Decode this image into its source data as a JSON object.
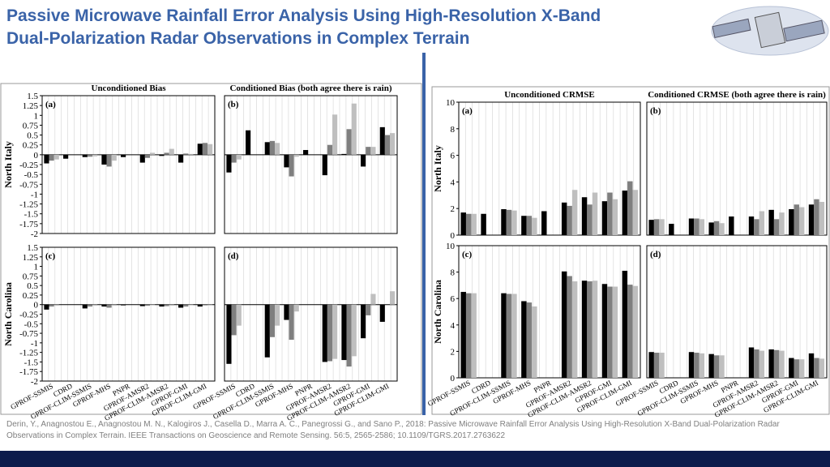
{
  "header": {
    "title": [
      "Passive Microwave Rainfall Error Analysis Using High-Resolution X-Band",
      "Dual-Polarization Radar Observations in Complex Terrain"
    ]
  },
  "citation": "Derin, Y., Anagnostou E., Anagnostou M. N., Kalogiros J., Casella D., Marra A. C., Panegrossi G., and Sano P., 2018: Passive Microwave Rainfall Error Analysis Using High-Resolution X-Band Dual-Polarization Radar Observations in Complex Terrain. IEEE Transactions on Geoscience and Remote Sensing. 56:5, 2565-2586; 10.1109/TGRS.2017.2763622",
  "chart_data": [
    {
      "type": "bar",
      "title": "Unconditioned Bias",
      "panel": "(a)",
      "ylabel": "North Italy",
      "ylim": [
        -2,
        1.5
      ],
      "yticks": [
        1.5,
        1.25,
        1,
        0.75,
        0.5,
        0.25,
        0,
        -0.25,
        -0.5,
        -0.75,
        -1,
        -1.25,
        -1.5,
        -1.75,
        -2
      ],
      "grid": true,
      "series": [
        {
          "color": "#000000",
          "values": [
            -0.22,
            -0.1,
            -0.06,
            -0.25,
            -0.06,
            -0.2,
            -0.03,
            -0.2,
            0.28
          ]
        },
        {
          "color": "#7f7f7f",
          "values": [
            -0.15,
            null,
            -0.05,
            -0.3,
            null,
            -0.08,
            0.05,
            0.03,
            0.3
          ]
        },
        {
          "color": "#bfbfbf",
          "values": [
            -0.12,
            null,
            -0.04,
            -0.15,
            null,
            0.05,
            0.15,
            0.02,
            0.27
          ]
        }
      ]
    },
    {
      "type": "bar",
      "title": "Conditioned Bias (both agree there is rain)",
      "panel": "(b)",
      "ylim": [
        -2,
        1.5
      ],
      "grid": true,
      "series": [
        {
          "color": "#000000",
          "values": [
            -0.45,
            0.62,
            0.32,
            -0.32,
            0.12,
            -0.52,
            0.02,
            -0.3,
            0.7
          ]
        },
        {
          "color": "#7f7f7f",
          "values": [
            -0.2,
            null,
            0.35,
            -0.55,
            null,
            0.25,
            0.65,
            0.2,
            0.5
          ]
        },
        {
          "color": "#bfbfbf",
          "values": [
            -0.12,
            null,
            0.3,
            -0.05,
            null,
            1.02,
            1.3,
            0.2,
            0.55
          ]
        }
      ]
    },
    {
      "type": "bar",
      "panel": "(c)",
      "ylabel": "North Carolina",
      "ylim": [
        -2,
        1.5
      ],
      "yticks": [
        1.5,
        1.25,
        1,
        0.75,
        0.5,
        0.25,
        0,
        -0.25,
        -0.5,
        -0.75,
        -1,
        -1.25,
        -1.5,
        -1.75,
        -2
      ],
      "grid": true,
      "categories": [
        "GPROF-SSMIS",
        "CDRD",
        "GPROF-CLIM-SSMIS",
        "GPROF-MHS",
        "PNPR",
        "GPROF-AMSR2",
        "GPROF-CLIM-AMSR2",
        "GPROF-GMI",
        "GPROF-CLIM-GMI"
      ],
      "series": [
        {
          "color": "#000000",
          "values": [
            -0.13,
            null,
            -0.1,
            -0.05,
            -0.02,
            -0.04,
            -0.05,
            -0.08,
            -0.05
          ]
        },
        {
          "color": "#7f7f7f",
          "values": [
            -0.05,
            null,
            -0.05,
            -0.08,
            null,
            -0.03,
            -0.04,
            -0.05,
            -0.02
          ]
        },
        {
          "color": "#bfbfbf",
          "values": [
            -0.03,
            null,
            -0.03,
            -0.03,
            null,
            -0.02,
            -0.03,
            -0.02,
            -0.01
          ]
        }
      ]
    },
    {
      "type": "bar",
      "panel": "(d)",
      "ylim": [
        -2,
        1.5
      ],
      "grid": true,
      "categories": [
        "GPROF-SSMIS",
        "CDRD",
        "GPROF-CLIM-SSMIS",
        "GPROF-MHS",
        "PNPR",
        "GPROF-AMSR2",
        "GPROF-CLIM-AMSR2",
        "GPROF-GMI",
        "GPROF-CLIM-GMI"
      ],
      "series": [
        {
          "color": "#000000",
          "values": [
            -1.55,
            null,
            -1.38,
            -0.4,
            null,
            -1.5,
            -1.45,
            -0.88,
            -0.45
          ]
        },
        {
          "color": "#7f7f7f",
          "values": [
            -0.8,
            null,
            -0.85,
            -0.92,
            null,
            -1.48,
            -1.62,
            -0.28,
            null
          ]
        },
        {
          "color": "#bfbfbf",
          "values": [
            -0.55,
            null,
            -0.55,
            -0.18,
            null,
            -1.42,
            -1.35,
            0.28,
            0.35
          ]
        }
      ]
    },
    {
      "type": "bar",
      "title": "Unconditioned CRMSE",
      "panel": "(a)",
      "ylabel": "North Italy",
      "ylim": [
        0,
        10
      ],
      "yticks": [
        0,
        2,
        4,
        6,
        8,
        10
      ],
      "grid": true,
      "series": [
        {
          "color": "#000000",
          "values": [
            1.7,
            1.6,
            1.95,
            1.45,
            1.8,
            2.45,
            2.85,
            2.55,
            3.35
          ]
        },
        {
          "color": "#7f7f7f",
          "values": [
            1.6,
            null,
            1.9,
            1.45,
            null,
            2.2,
            2.3,
            3.2,
            4.05
          ]
        },
        {
          "color": "#bfbfbf",
          "values": [
            1.6,
            null,
            1.85,
            1.3,
            null,
            3.4,
            3.2,
            2.7,
            3.4
          ]
        }
      ]
    },
    {
      "type": "bar",
      "title": "Conditioned CRMSE (both agree there is rain)",
      "panel": "(b)",
      "ylim": [
        0,
        10
      ],
      "grid": true,
      "series": [
        {
          "color": "#000000",
          "values": [
            1.15,
            0.85,
            1.25,
            0.95,
            1.4,
            1.4,
            1.9,
            1.95,
            2.3
          ]
        },
        {
          "color": "#7f7f7f",
          "values": [
            1.2,
            null,
            1.25,
            1.05,
            null,
            1.2,
            1.2,
            2.3,
            2.7
          ]
        },
        {
          "color": "#bfbfbf",
          "values": [
            1.2,
            null,
            1.2,
            0.9,
            null,
            1.8,
            1.7,
            2.1,
            2.5
          ]
        }
      ]
    },
    {
      "type": "bar",
      "panel": "(c)",
      "ylabel": "North Carolina",
      "ylim": [
        0,
        10
      ],
      "yticks": [
        0,
        2,
        4,
        6,
        8,
        10
      ],
      "grid": true,
      "categories": [
        "GPROF-SSMIS",
        "CDRD",
        "GPROF-CLIM-SSMIS",
        "GPROF-MHS",
        "PNPR",
        "GPROF-AMSR2",
        "GPROF-CLIM-AMSR2",
        "GPROF-GMI",
        "GPROF-CLIM-GMI"
      ],
      "series": [
        {
          "color": "#000000",
          "values": [
            6.5,
            null,
            6.4,
            5.8,
            null,
            8.05,
            7.35,
            7.1,
            8.1
          ]
        },
        {
          "color": "#7f7f7f",
          "values": [
            6.4,
            null,
            6.35,
            5.7,
            null,
            7.7,
            7.3,
            6.9,
            7.05
          ]
        },
        {
          "color": "#bfbfbf",
          "values": [
            6.4,
            null,
            6.35,
            5.4,
            null,
            7.3,
            7.35,
            6.9,
            6.95
          ]
        }
      ]
    },
    {
      "type": "bar",
      "panel": "(d)",
      "ylim": [
        0,
        10
      ],
      "grid": true,
      "categories": [
        "GPROF-SSMIS",
        "CDRD",
        "GPROF-CLIM-SSMIS",
        "GPROF-MHS",
        "PNPR",
        "GPROF-AMSR2",
        "GPROF-CLIM-AMSR2",
        "GPROF-GMI",
        "GPROF-CLIM-GMI"
      ],
      "series": [
        {
          "color": "#000000",
          "values": [
            1.95,
            null,
            1.95,
            1.8,
            null,
            2.3,
            2.15,
            1.5,
            1.85
          ]
        },
        {
          "color": "#7f7f7f",
          "values": [
            1.9,
            null,
            1.9,
            1.7,
            null,
            2.15,
            2.1,
            1.4,
            1.5
          ]
        },
        {
          "color": "#bfbfbf",
          "values": [
            1.9,
            null,
            1.85,
            1.7,
            null,
            2.05,
            2.05,
            1.4,
            1.45
          ]
        }
      ]
    }
  ]
}
